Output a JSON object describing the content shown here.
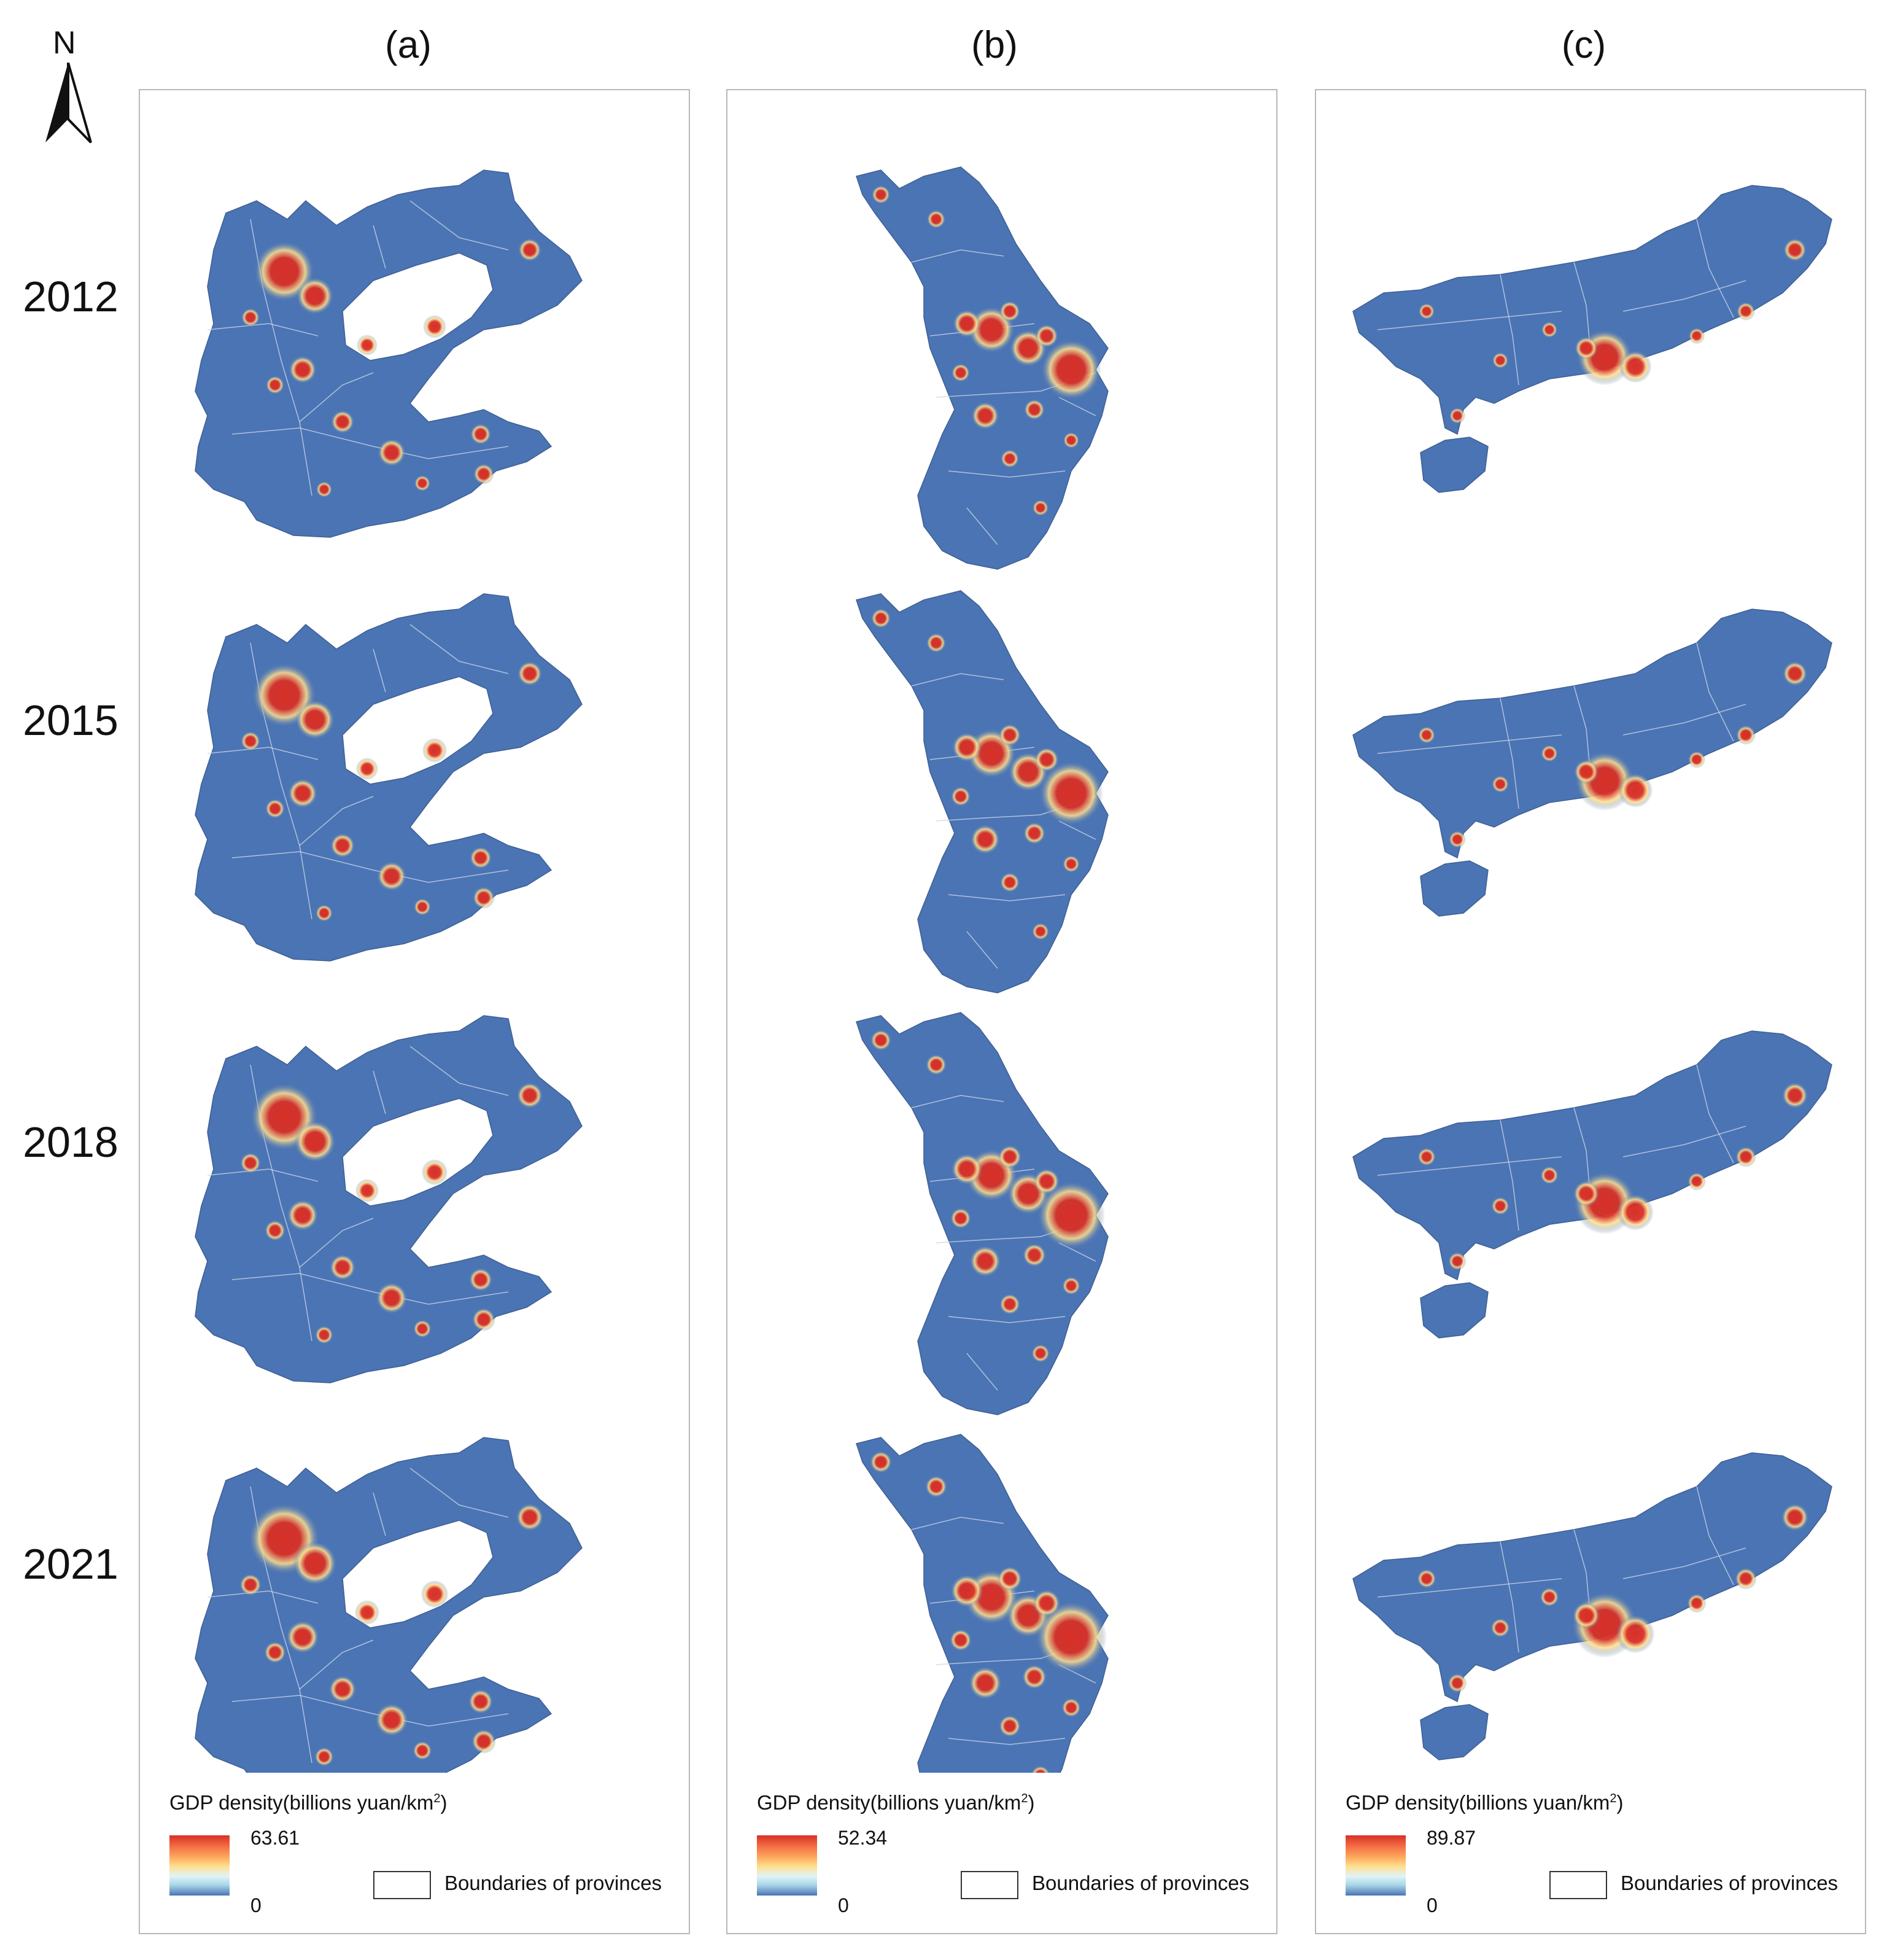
{
  "north_arrow": {
    "label": "N"
  },
  "panels": [
    {
      "label": "(a)",
      "legend_max": "63.61",
      "legend_min": "0"
    },
    {
      "label": "(b)",
      "legend_max": "52.34",
      "legend_min": "0"
    },
    {
      "label": "(c)",
      "legend_max": "89.87",
      "legend_min": "0"
    }
  ],
  "years": [
    "2012",
    "2015",
    "2018",
    "2021"
  ],
  "legend": {
    "title_main": "GDP density(billions yuan/km",
    "title_sup": "2",
    "title_close": ")",
    "boundary_label": "Boundaries of provinces"
  },
  "colors": {
    "base": "#4a74b4",
    "high": "#d73027",
    "mid": "#fee090",
    "boundary": "#c9d4e6"
  }
}
